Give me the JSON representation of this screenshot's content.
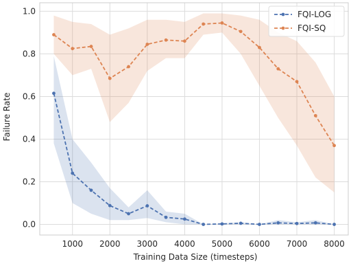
{
  "chart_data": {
    "type": "line",
    "xlabel": "Training Data Size (timesteps)",
    "ylabel": "Failure Rate",
    "x": [
      500,
      1000,
      1500,
      2000,
      2500,
      3000,
      3500,
      4000,
      4500,
      5000,
      5500,
      6000,
      6500,
      7000,
      7500,
      8000
    ],
    "series": [
      {
        "name": "FQI-LOG",
        "color": "#4c72b0",
        "values": [
          0.615,
          0.24,
          0.16,
          0.088,
          0.05,
          0.087,
          0.033,
          0.025,
          0.0,
          0.002,
          0.005,
          0.0,
          0.007,
          0.004,
          0.007,
          0.0
        ],
        "lower": [
          0.38,
          0.1,
          0.05,
          0.02,
          0.02,
          0.03,
          0.01,
          0.0,
          0.0,
          0.0,
          0.0,
          0.0,
          0.0,
          0.0,
          0.0,
          0.0
        ],
        "upper": [
          0.79,
          0.4,
          0.29,
          0.17,
          0.08,
          0.16,
          0.06,
          0.05,
          0.0,
          0.005,
          0.01,
          0.0,
          0.02,
          0.01,
          0.02,
          0.0
        ]
      },
      {
        "name": "FQI-SQ",
        "color": "#dd8452",
        "values": [
          0.89,
          0.825,
          0.835,
          0.685,
          0.74,
          0.845,
          0.865,
          0.86,
          0.94,
          0.945,
          0.905,
          0.83,
          0.73,
          0.67,
          0.51,
          0.37
        ],
        "lower": [
          0.8,
          0.7,
          0.73,
          0.48,
          0.57,
          0.72,
          0.78,
          0.78,
          0.89,
          0.9,
          0.8,
          0.65,
          0.5,
          0.37,
          0.22,
          0.15
        ],
        "upper": [
          0.98,
          0.95,
          0.94,
          0.89,
          0.92,
          0.96,
          0.96,
          0.95,
          0.99,
          0.99,
          0.98,
          0.96,
          0.9,
          0.86,
          0.76,
          0.6
        ]
      }
    ],
    "xlim": [
      125,
      8375
    ],
    "ylim": [
      -0.05,
      1.04
    ],
    "xticks": [
      1000,
      2000,
      3000,
      4000,
      5000,
      6000,
      7000,
      8000
    ],
    "yticks": [
      {
        "value": 0,
        "label": "0.0"
      },
      {
        "value": 0.2,
        "label": "0.2"
      },
      {
        "value": 0.4,
        "label": "0.4"
      },
      {
        "value": 0.6,
        "label": "0.6"
      },
      {
        "value": 0.8,
        "label": "0.8"
      },
      {
        "value": 1,
        "label": "1.0"
      }
    ],
    "grid": true,
    "legend": "upper right"
  }
}
